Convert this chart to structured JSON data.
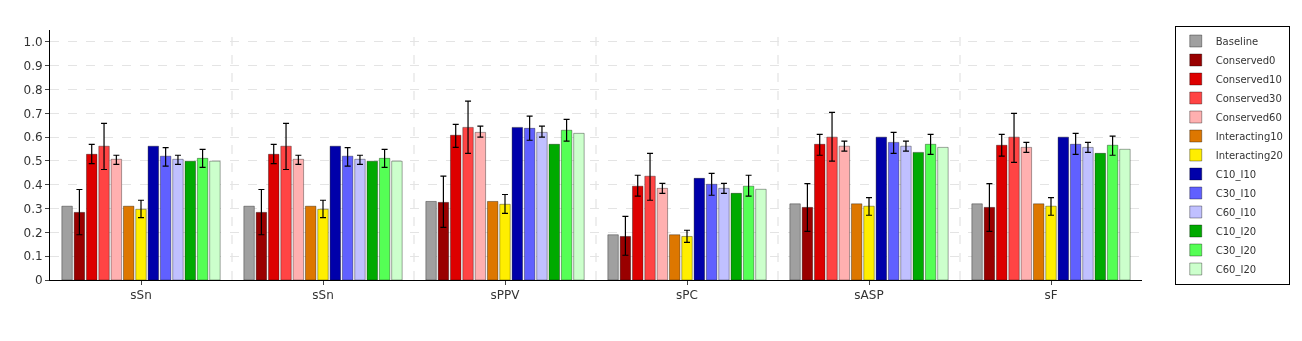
{
  "chart_data": {
    "type": "bar",
    "categories": [
      "sSn",
      "sSn",
      "sPPV",
      "sPC",
      "sASP",
      "sF"
    ],
    "ylim": [
      0,
      1.05
    ],
    "yticks": [
      0,
      0.1,
      0.2,
      0.3,
      0.4,
      0.5,
      0.6,
      0.7,
      0.8,
      0.9,
      {
        "value": 1,
        "label": "1.0"
      }
    ],
    "grid": true,
    "legend": "right",
    "series": [
      {
        "name": "Baseline",
        "color": "#a0a0a0",
        "values": [
          0.31,
          0.31,
          0.33,
          0.19,
          0.32,
          0.32
        ]
      },
      {
        "name": "Conserved0",
        "color": "#990000",
        "values": [
          0.284,
          0.284,
          0.326,
          0.183,
          0.305,
          0.305
        ],
        "errors": [
          [
            0.19,
            0.38
          ],
          [
            0.19,
            0.38
          ],
          [
            0.221,
            0.436
          ],
          [
            0.104,
            0.267
          ],
          [
            0.204,
            0.405
          ],
          [
            0.204,
            0.405
          ]
        ]
      },
      {
        "name": "Conserved10",
        "color": "#dd0000",
        "values": [
          0.528,
          0.528,
          0.608,
          0.394,
          0.57,
          0.566
        ],
        "errors": [
          [
            0.489,
            0.57
          ],
          [
            0.489,
            0.57
          ],
          [
            0.557,
            0.654
          ],
          [
            0.352,
            0.44
          ],
          [
            0.524,
            0.612
          ],
          [
            0.52,
            0.612
          ]
        ]
      },
      {
        "name": "Conserved30",
        "color": "#ff4444",
        "values": [
          0.562,
          0.562,
          0.641,
          0.436,
          0.6,
          0.6
        ],
        "errors": [
          [
            0.464,
            0.658
          ],
          [
            0.464,
            0.658
          ],
          [
            0.532,
            0.751
          ],
          [
            0.335,
            0.532
          ],
          [
            0.499,
            0.704
          ],
          [
            0.494,
            0.7
          ]
        ]
      },
      {
        "name": "Conserved60",
        "color": "#ffb0b0",
        "values": [
          0.507,
          0.507,
          0.62,
          0.385,
          0.562,
          0.557
        ],
        "errors": [
          [
            0.486,
            0.524
          ],
          [
            0.486,
            0.524
          ],
          [
            0.6,
            0.646
          ],
          [
            0.364,
            0.406
          ],
          [
            0.541,
            0.583
          ],
          [
            0.536,
            0.578
          ]
        ]
      },
      {
        "name": "Interacting10",
        "color": "#dd7700",
        "values": [
          0.31,
          0.31,
          0.33,
          0.19,
          0.32,
          0.32
        ]
      },
      {
        "name": "Interacting20",
        "color": "#ffee00",
        "values": [
          0.297,
          0.297,
          0.318,
          0.183,
          0.31,
          0.31
        ],
        "errors": [
          [
            0.262,
            0.335
          ],
          [
            0.262,
            0.335
          ],
          [
            0.28,
            0.359
          ],
          [
            0.158,
            0.209
          ],
          [
            0.272,
            0.346
          ],
          [
            0.272,
            0.346
          ]
        ]
      },
      {
        "name": "C10_I10",
        "color": "#0000aa",
        "values": [
          0.562,
          0.562,
          0.641,
          0.427,
          0.6,
          0.6
        ]
      },
      {
        "name": "C30_I10",
        "color": "#6060ff",
        "values": [
          0.52,
          0.52,
          0.637,
          0.402,
          0.578,
          0.57
        ],
        "errors": [
          [
            0.478,
            0.556
          ],
          [
            0.478,
            0.556
          ],
          [
            0.587,
            0.688
          ],
          [
            0.356,
            0.448
          ],
          [
            0.532,
            0.62
          ],
          [
            0.528,
            0.616
          ]
        ]
      },
      {
        "name": "C60_I10",
        "color": "#c0c0ff",
        "values": [
          0.507,
          0.507,
          0.62,
          0.385,
          0.562,
          0.557
        ],
        "errors": [
          [
            0.486,
            0.524
          ],
          [
            0.486,
            0.524
          ],
          [
            0.6,
            0.646
          ],
          [
            0.364,
            0.406
          ],
          [
            0.541,
            0.583
          ],
          [
            0.536,
            0.578
          ]
        ]
      },
      {
        "name": "C10_I20",
        "color": "#00aa00",
        "values": [
          0.499,
          0.499,
          0.57,
          0.364,
          0.536,
          0.532
        ]
      },
      {
        "name": "C30_I20",
        "color": "#55ff55",
        "values": [
          0.511,
          0.511,
          0.629,
          0.394,
          0.57,
          0.566
        ],
        "errors": [
          [
            0.473,
            0.549
          ],
          [
            0.473,
            0.549
          ],
          [
            0.583,
            0.675
          ],
          [
            0.352,
            0.44
          ],
          [
            0.528,
            0.612
          ],
          [
            0.524,
            0.604
          ]
        ]
      },
      {
        "name": "C60_I20",
        "color": "#ccffcc",
        "values": [
          0.499,
          0.499,
          0.616,
          0.381,
          0.557,
          0.549
        ]
      }
    ]
  }
}
